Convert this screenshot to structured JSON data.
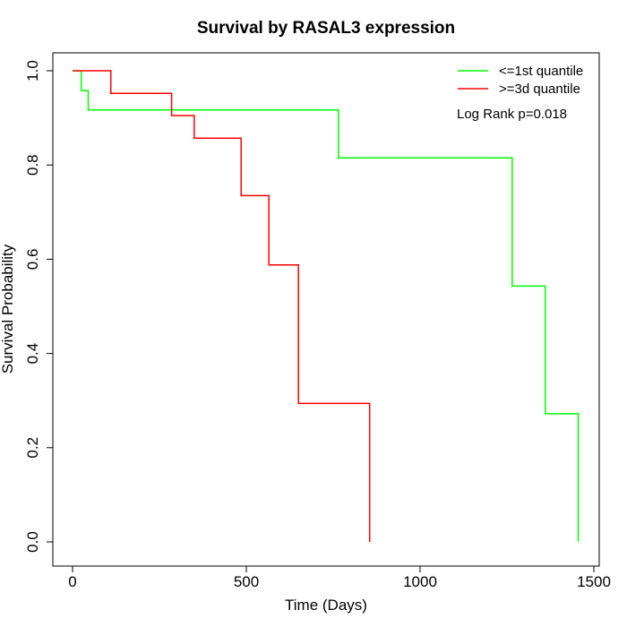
{
  "chart_data": {
    "type": "line",
    "title": "Survival by RASAL3 expression",
    "xlabel": "Time (Days)",
    "ylabel": "Survival Probability",
    "xlim": [
      0,
      1500
    ],
    "ylim": [
      0,
      1.0
    ],
    "x_ticks": [
      0,
      500,
      1000,
      1500
    ],
    "y_ticks": [
      "0.0",
      "0.2",
      "0.4",
      "0.6",
      "0.8",
      "1.0"
    ],
    "grid": false,
    "legend_position": "top-right",
    "annotation": "Log Rank p=0.018",
    "series": [
      {
        "name": "<=1st quantile",
        "color": "#00ff00",
        "step": true,
        "points": [
          [
            0,
            1.0
          ],
          [
            25,
            1.0
          ],
          [
            25,
            0.958
          ],
          [
            45,
            0.958
          ],
          [
            45,
            0.917
          ],
          [
            765,
            0.917
          ],
          [
            765,
            0.815
          ],
          [
            1265,
            0.815
          ],
          [
            1265,
            0.543
          ],
          [
            1360,
            0.543
          ],
          [
            1360,
            0.272
          ],
          [
            1455,
            0.272
          ],
          [
            1455,
            0.0
          ]
        ]
      },
      {
        "name": ">=3d quantile",
        "color": "#ff0000",
        "step": true,
        "points": [
          [
            0,
            1.0
          ],
          [
            110,
            1.0
          ],
          [
            110,
            0.952
          ],
          [
            285,
            0.952
          ],
          [
            285,
            0.905
          ],
          [
            350,
            0.905
          ],
          [
            350,
            0.857
          ],
          [
            485,
            0.857
          ],
          [
            485,
            0.735
          ],
          [
            565,
            0.735
          ],
          [
            565,
            0.588
          ],
          [
            650,
            0.588
          ],
          [
            650,
            0.294
          ],
          [
            855,
            0.294
          ],
          [
            855,
            0.0
          ]
        ]
      }
    ]
  }
}
